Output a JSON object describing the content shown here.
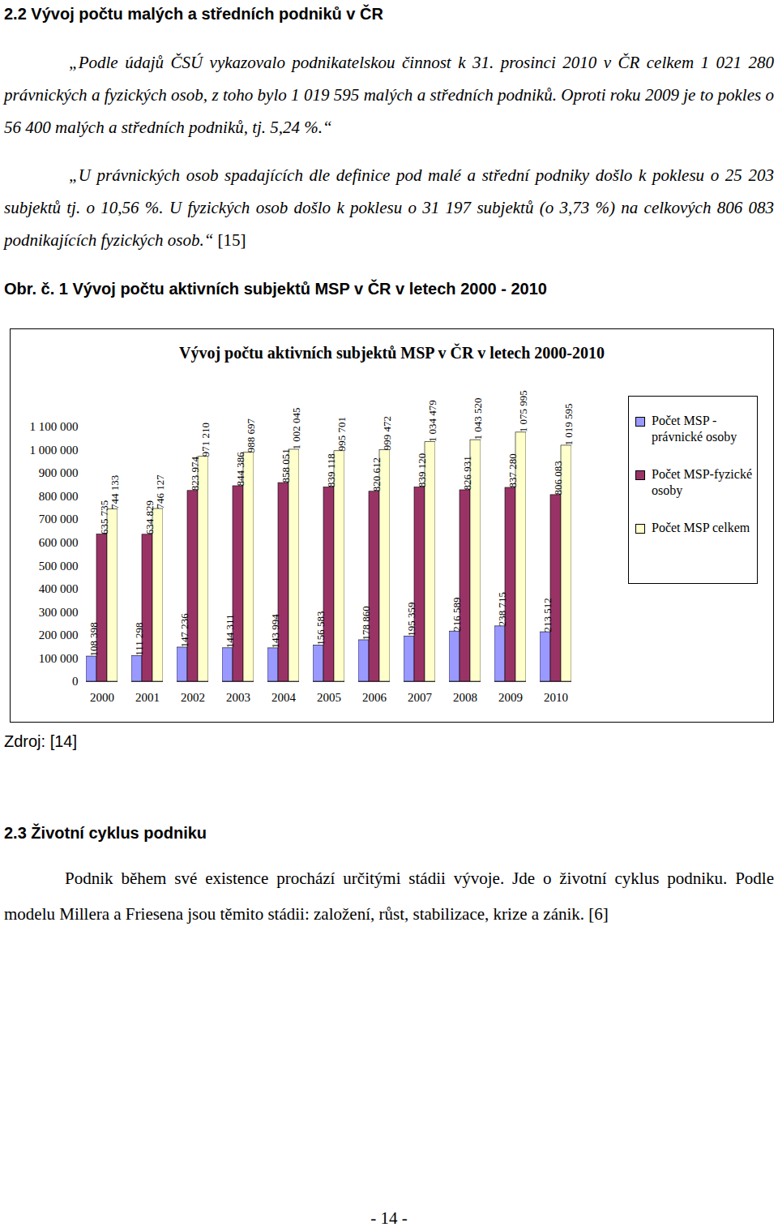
{
  "header": {
    "title": "2.2 Vývoj počtu malých a středních podniků v ČR"
  },
  "paragraphs": [
    {
      "text": "„Podle údajů ČSÚ vykazovalo podnikatelskou činnost k 31. prosinci 2010 v ČR celkem 1 021 280 právnických a fyzických osob, z toho bylo 1 019 595 malých a středních podniků. Oproti roku 2009 je to pokles o 56 400 malých a středních podniků, tj. 5,24 %.“"
    },
    {
      "text": "„U právnických osob spadajících dle definice pod malé a střední podniky došlo k poklesu o 25 203 subjektů tj. o 10,56 %. U fyzických osob došlo k poklesu o 31 197 subjektů (o 3,73 %) na celkových 806 083 podnikajících fyzických osob.“",
      "citation": "[15]"
    }
  ],
  "figure_caption": "Obr. č. 1 Vývoj počtu aktivních subjektů MSP v ČR v letech 2000 - 2010",
  "chart_data": {
    "type": "bar",
    "title": "Vývoj počtu aktivních subjektů MSP  v ČR v letech 2000-2010",
    "categories": [
      "2000",
      "2001",
      "2002",
      "2003",
      "2004",
      "2005",
      "2006",
      "2007",
      "2008",
      "2009",
      "2010"
    ],
    "series": [
      {
        "name": "Počet MSP - právnické osoby",
        "color": "#9999ff",
        "values": [
          108398,
          111298,
          147236,
          144311,
          143994,
          156583,
          178860,
          195359,
          216589,
          238715,
          213512
        ],
        "value_labels": [
          "108 398",
          "111 298",
          "147 236",
          "144 311",
          "143 994",
          "156 583",
          "178 860",
          "195 359",
          "216 589",
          "238 715",
          "213 512"
        ]
      },
      {
        "name": "Počet MSP-fyzické osoby",
        "color": "#993366",
        "values": [
          635735,
          634829,
          823974,
          844386,
          858051,
          839118,
          820612,
          839120,
          826931,
          837280,
          806083
        ],
        "value_labels": [
          "635 735",
          "634 829",
          "823 974",
          "844 386",
          "858 051",
          "839 118",
          "820 612",
          "839 120",
          "826 931",
          "837 280",
          "806 083"
        ]
      },
      {
        "name": "Počet MSP celkem",
        "color": "#ffffcc",
        "values": [
          744133,
          746127,
          971210,
          988697,
          1002045,
          995701,
          999472,
          1034479,
          1043520,
          1075995,
          1019595
        ],
        "value_labels": [
          "744 133",
          "746 127",
          "971 210",
          "988 697",
          "1 002 045",
          "995 701",
          "999 472",
          "1 034 479",
          "1 043 520",
          "1 075 995",
          "1 019 595"
        ]
      }
    ],
    "ylim": [
      0,
      1100000
    ],
    "yticks": [
      0,
      {
        "value": 100000,
        "label": "100 000"
      },
      {
        "value": 200000,
        "label": "200 000"
      },
      {
        "value": 300000,
        "label": "300 000"
      },
      {
        "value": 400000,
        "label": "400 000"
      },
      {
        "value": 500000,
        "label": "500 000"
      },
      {
        "value": 600000,
        "label": "600 000"
      },
      {
        "value": 700000,
        "label": "700 000"
      },
      {
        "value": 800000,
        "label": "800 000"
      },
      {
        "value": 900000,
        "label": "900 000"
      },
      {
        "value": 1000000,
        "label": "1 000 000"
      },
      {
        "value": 1100000,
        "label": "1 100 000"
      }
    ],
    "grid": false,
    "legend": "right",
    "data_labels": true
  },
  "source": "Zdroj: [14]",
  "section": {
    "title": "2.3 Životní cyklus podniku",
    "text": "Podnik během své existence prochází určitými stádii vývoje. Jde o životní cyklus podniku. Podle modelu Millera a Friesena jsou těmito stádii: založení, růst, stabilizace, krize a zánik. [6]"
  },
  "page_number": "- 14 -"
}
